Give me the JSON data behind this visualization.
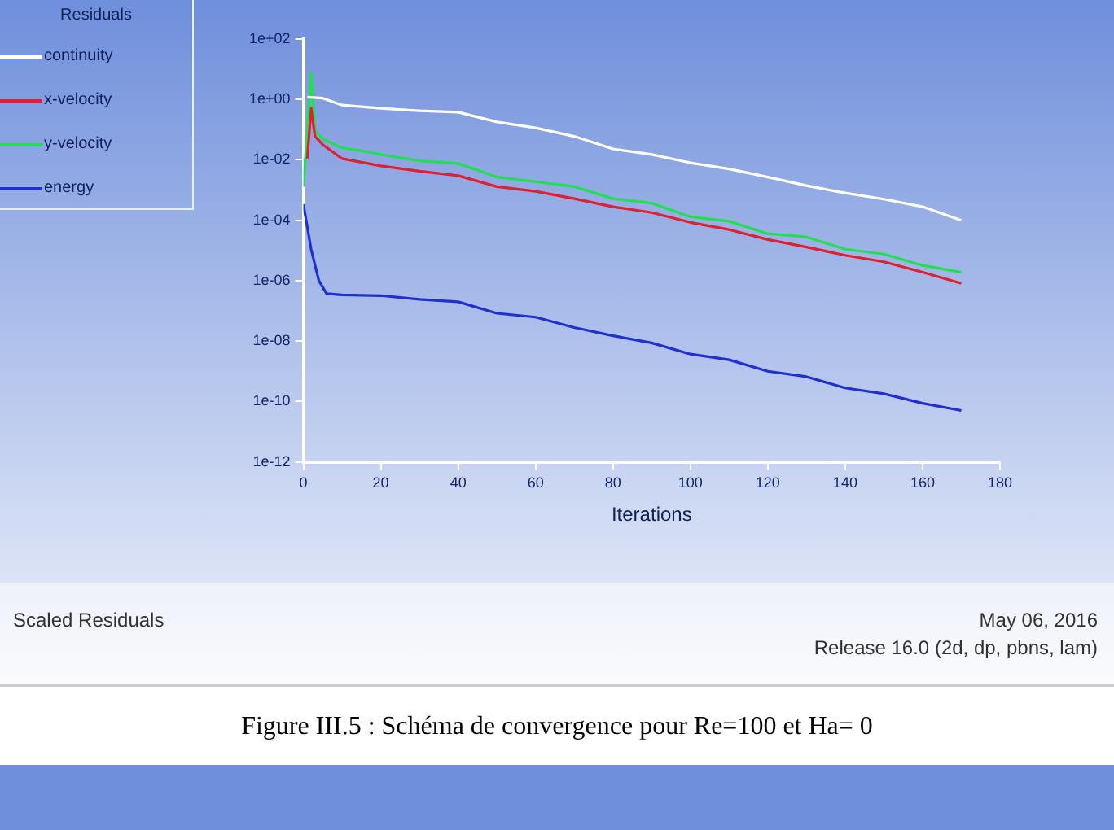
{
  "chart_data": {
    "type": "line",
    "title": "Scaled Residuals",
    "xlabel": "Iterations",
    "legend_title": "Residuals",
    "legend": "top left",
    "log": "y",
    "grid": false,
    "marker": "none",
    "line_style": "solid",
    "xlim": [
      0,
      180
    ],
    "xticks": [
      0,
      20,
      40,
      60,
      80,
      100,
      120,
      140,
      160,
      180
    ],
    "ylim": [
      1e-12,
      100
    ],
    "yticks": [
      {
        "value": 100,
        "label": "1e+02"
      },
      {
        "value": 1,
        "label": "1e+00"
      },
      {
        "value": 0.01,
        "label": "1e-02"
      },
      {
        "value": 0.0001,
        "label": "1e-04"
      },
      {
        "value": 1e-06,
        "label": "1e-06"
      },
      {
        "value": 1e-08,
        "label": "1e-08"
      },
      {
        "value": 1e-10,
        "label": "1e-10"
      },
      {
        "value": 1e-12,
        "label": "1e-12"
      }
    ],
    "series": [
      {
        "name": "continuity",
        "color": "#ffffff",
        "x": [
          1,
          5,
          10,
          20,
          30,
          40,
          50,
          60,
          70,
          80,
          90,
          100,
          110,
          120,
          130,
          140,
          150,
          160,
          170
        ],
        "values": [
          1.2,
          1.1,
          0.65,
          0.51,
          0.42,
          0.38,
          0.18,
          0.115,
          0.06,
          0.023,
          0.015,
          0.008,
          0.005,
          0.0027,
          0.0014,
          0.0008,
          0.0005,
          0.00028,
          0.0001
        ]
      },
      {
        "name": "x-velocity",
        "color": "#e02030",
        "x": [
          1,
          2,
          3,
          5,
          10,
          20,
          30,
          40,
          50,
          60,
          70,
          80,
          90,
          100,
          110,
          120,
          130,
          140,
          150,
          160,
          170
        ],
        "values": [
          0.011,
          0.51,
          0.06,
          0.032,
          0.011,
          0.0063,
          0.0042,
          0.003,
          0.0013,
          0.00091,
          0.00052,
          0.00028,
          0.00018,
          8.5e-05,
          4.9e-05,
          2.3e-05,
          1.3e-05,
          6.9e-06,
          4.2e-06,
          1.9e-06,
          8.1e-07
        ]
      },
      {
        "name": "y-velocity",
        "color": "#20e050",
        "x": [
          0,
          2,
          3,
          5,
          10,
          15,
          20,
          30,
          40,
          50,
          60,
          70,
          80,
          90,
          100,
          110,
          120,
          130,
          140,
          150,
          160,
          170
        ],
        "values": [
          0.0013,
          7.6,
          0.093,
          0.049,
          0.025,
          0.02,
          0.015,
          0.0093,
          0.0076,
          0.0027,
          0.0019,
          0.0013,
          0.00052,
          0.00037,
          0.00013,
          9.3e-05,
          3.6e-05,
          2.8e-05,
          1.1e-05,
          7.6e-06,
          3.2e-06,
          1.9e-06
        ]
      },
      {
        "name": "energy",
        "color": "#2030d0",
        "x": [
          0,
          2,
          4,
          6,
          10,
          20,
          30,
          40,
          50,
          60,
          70,
          80,
          90,
          100,
          110,
          120,
          130,
          140,
          150,
          160,
          170
        ],
        "values": [
          0.00034,
          1.1e-05,
          1e-06,
          3.7e-07,
          3.4e-07,
          3.2e-07,
          2.4e-07,
          2e-07,
          8.3e-08,
          6.2e-08,
          2.8e-08,
          1.5e-08,
          8.7e-09,
          3.7e-09,
          2.4e-09,
          1e-09,
          6.6e-10,
          2.8e-10,
          1.8e-10,
          8.7e-11,
          5e-11
        ]
      }
    ],
    "annotations": [
      "May 06, 2016",
      "Release 16.0 (2d, dp, pbns, lam)",
      "Figure III.5 : Schéma de convergence pour Re=100 et Ha= 0"
    ]
  }
}
